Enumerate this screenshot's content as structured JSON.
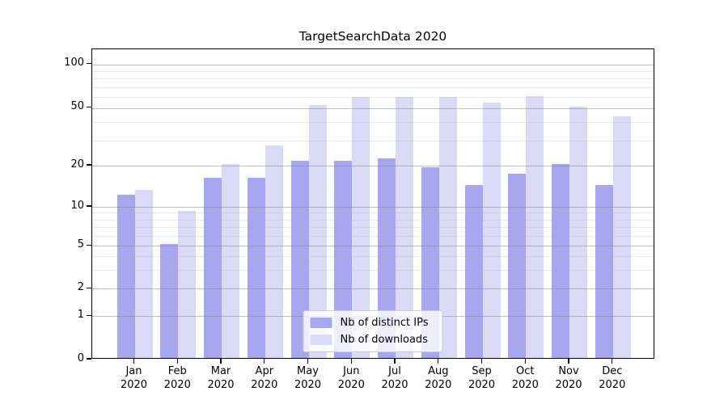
{
  "title": "TargetSearchData 2020",
  "legend": {
    "items": [
      {
        "label": "Nb of distinct IPs",
        "color": "#a7a7f0"
      },
      {
        "label": "Nb of downloads",
        "color": "#dadaf7"
      }
    ]
  },
  "chart_data": {
    "type": "bar",
    "title": "TargetSearchData 2020",
    "categories": [
      "Jan 2020",
      "Feb 2020",
      "Mar 2020",
      "Apr 2020",
      "May 2020",
      "Jun 2020",
      "Jul 2020",
      "Aug 2020",
      "Sep 2020",
      "Oct 2020",
      "Nov 2020",
      "Dec 2020"
    ],
    "x_tick_labels": [
      [
        "Jan",
        "2020"
      ],
      [
        "Feb",
        "2020"
      ],
      [
        "Mar",
        "2020"
      ],
      [
        "Apr",
        "2020"
      ],
      [
        "May",
        "2020"
      ],
      [
        "Jun",
        "2020"
      ],
      [
        "Jul",
        "2020"
      ],
      [
        "Aug",
        "2020"
      ],
      [
        "Sep",
        "2020"
      ],
      [
        "Oct",
        "2020"
      ],
      [
        "Nov",
        "2020"
      ],
      [
        "Dec",
        "2020"
      ]
    ],
    "series": [
      {
        "name": "Nb of distinct IPs",
        "color": "#a7a7f0",
        "values": [
          12,
          5,
          16,
          16,
          21,
          21,
          22,
          19,
          14,
          17,
          20,
          14
        ]
      },
      {
        "name": "Nb of downloads",
        "color": "#dadaf7",
        "values": [
          13,
          9,
          20,
          27,
          51,
          58,
          58,
          58,
          53,
          59,
          50,
          43
        ]
      }
    ],
    "y_axis": {
      "scale": "symlog",
      "ticks": [
        0,
        1,
        2,
        5,
        10,
        20,
        50,
        100
      ],
      "minor_ticks": [
        3,
        4,
        6,
        7,
        8,
        9,
        30,
        40,
        60,
        70,
        80,
        90
      ],
      "ylim": [
        0,
        127
      ]
    },
    "grid": true,
    "legend_position": "lower center",
    "y_anchors": [
      [
        0,
        0
      ],
      [
        1,
        0.1396
      ],
      [
        2,
        0.2283
      ],
      [
        5,
        0.3667
      ],
      [
        10,
        0.4919
      ],
      [
        20,
        0.625
      ],
      [
        50,
        0.8103
      ],
      [
        100,
        0.9512
      ]
    ]
  },
  "colors": {
    "bar_dark": "#a7a7f0",
    "bar_light": "#dadaf7",
    "grid_major": "#c6c6c6",
    "grid_minor": "#ebebeb",
    "spine": "#000000",
    "legend_border": "#cccccc",
    "background": "#ffffff"
  }
}
